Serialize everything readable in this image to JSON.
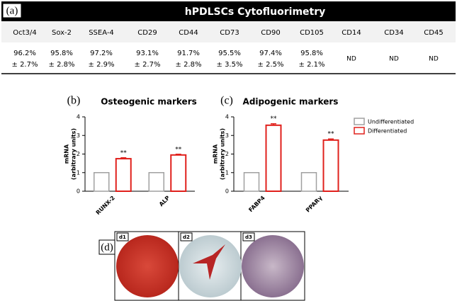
{
  "table": {
    "panel": "(a)",
    "title": "hPDLSCs Cytofluorimetry",
    "columns": [
      "Oct3/4",
      "Sox-2",
      "SSEA-4",
      "CD29",
      "CD44",
      "CD73",
      "CD90",
      "CD105",
      "CD14",
      "CD34",
      "CD45"
    ],
    "cells": [
      {
        "mean": "96.2%",
        "sd": "± 2.7%"
      },
      {
        "mean": "95.8%",
        "sd": "± 2.8%"
      },
      {
        "mean": "97.2%",
        "sd": "± 2.9%"
      },
      {
        "mean": "93.1%",
        "sd": "± 2.7%"
      },
      {
        "mean": "91.7%",
        "sd": "± 2.8%"
      },
      {
        "mean": "95.5%",
        "sd": "± 3.5%"
      },
      {
        "mean": "97.4%",
        "sd": "± 2.5%"
      },
      {
        "mean": "95.8%",
        "sd": "± 2.1%"
      },
      {
        "mean": "ND"
      },
      {
        "mean": "ND"
      },
      {
        "mean": "ND"
      }
    ]
  },
  "chart_data": [
    {
      "type": "bar",
      "panel": "(b)",
      "title": "Osteogenic markers",
      "ylabel": [
        "mRNA",
        "(arbitrary units)"
      ],
      "categories": [
        "RUNX-2",
        "ALP"
      ],
      "series": [
        {
          "color": "#a0a0a0",
          "values": [
            1,
            1
          ],
          "errors": [
            0,
            0
          ]
        },
        {
          "color": "#e0201c",
          "values": [
            1.75,
            1.95
          ],
          "errors": [
            0.05,
            0.04
          ]
        }
      ],
      "annotations": [
        "**",
        "**"
      ],
      "ylim": [
        0,
        4
      ],
      "yticks": [
        0,
        1,
        2,
        3,
        4
      ]
    },
    {
      "type": "bar",
      "panel": "(c)",
      "title": "Adipogenic markers",
      "ylabel": [
        "mRNA",
        "(arbitrary units)"
      ],
      "categories": [
        "FABP4",
        "PPARγ"
      ],
      "series": [
        {
          "name": "Undifferentiated",
          "color": "#a0a0a0",
          "values": [
            1,
            1
          ],
          "errors": [
            0,
            0
          ]
        },
        {
          "name": "Differentiated",
          "color": "#e0201c",
          "values": [
            3.55,
            2.75
          ],
          "errors": [
            0.08,
            0.06
          ]
        }
      ],
      "annotations": [
        "**",
        "**"
      ],
      "ylim": [
        0,
        4
      ],
      "yticks": [
        0,
        1,
        2,
        3,
        4
      ]
    }
  ],
  "images": {
    "panel": "(d)",
    "labels": [
      "d1",
      "d2",
      "d3"
    ]
  }
}
